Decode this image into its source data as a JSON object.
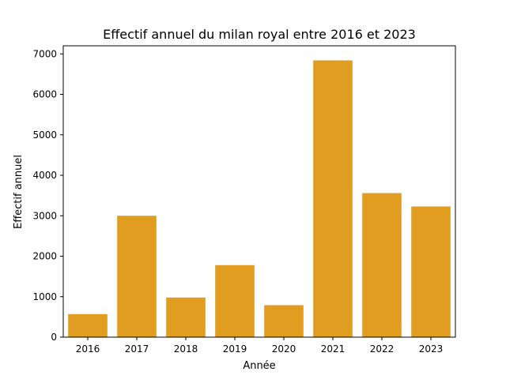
{
  "chart_data": {
    "type": "bar",
    "title": "Effectif annuel du milan royal entre 2016 et 2023",
    "xlabel": "Année",
    "ylabel": "Effectif annuel",
    "categories": [
      "2016",
      "2017",
      "2018",
      "2019",
      "2020",
      "2021",
      "2022",
      "2023"
    ],
    "values": [
      570,
      3000,
      980,
      1780,
      790,
      6840,
      3560,
      3230
    ],
    "ylim": [
      0,
      7200
    ],
    "yticks": [
      0,
      1000,
      2000,
      3000,
      4000,
      5000,
      6000,
      7000
    ],
    "ytick_labels": [
      "0",
      "1000",
      "2000",
      "3000",
      "4000",
      "5000",
      "6000",
      "7000"
    ],
    "bar_color": "#e09d20",
    "grid": false,
    "legend": "none"
  }
}
